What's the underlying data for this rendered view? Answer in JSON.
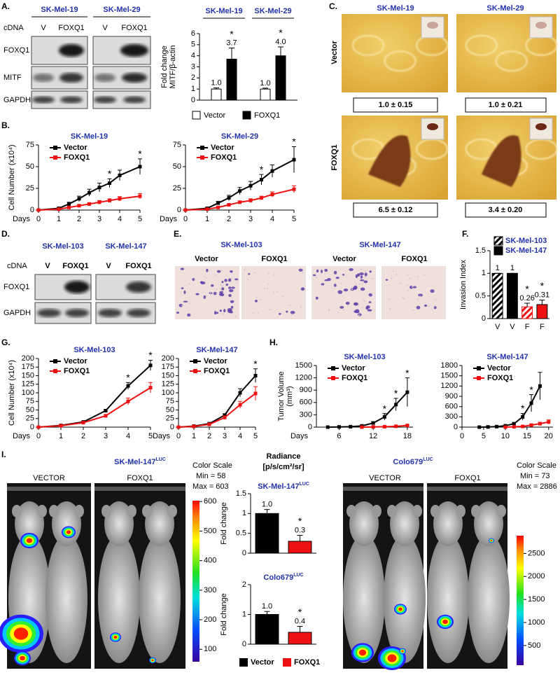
{
  "panels": {
    "A": {
      "label": "A.",
      "cell_lines": [
        "SK-Mel-19",
        "SK-Mel-29"
      ],
      "row_label": "cDNA",
      "lanes": [
        "V",
        "FOXQ1"
      ],
      "proteins": [
        "FOXQ1",
        "MITF",
        "GAPDH"
      ]
    },
    "B": {
      "label": "B."
    },
    "C": {
      "label": "C.",
      "cell_lines": [
        "SK-Mel-19",
        "SK-Mel-29"
      ],
      "rows": [
        "Vector",
        "FOXQ1"
      ],
      "quant": [
        [
          "1.0 ± 0.15",
          "1.0 ± 0.21"
        ],
        [
          "6.5 ± 0.12",
          "3.4 ± 0.20"
        ]
      ]
    },
    "D": {
      "label": "D.",
      "cell_lines": [
        "SK-Mel-103",
        "SK-Mel-147"
      ],
      "row_label": "cDNA",
      "lanes": [
        "V",
        "FOXQ1"
      ],
      "proteins": [
        "FOXQ1",
        "GAPDH"
      ]
    },
    "E": {
      "label": "E.",
      "cell_lines": [
        "SK-Mel-103",
        "SK-Mel-147"
      ],
      "conditions": [
        "Vector",
        "FOXQ1"
      ]
    },
    "F": {
      "label": "F."
    },
    "G": {
      "label": "G."
    },
    "H": {
      "label": "H."
    },
    "I": {
      "label": "I.",
      "radiance": "Radiance",
      "radiance_unit": "[p/s/cm²/sr]",
      "legend": [
        {
          "name": "Vector",
          "color": "#000000"
        },
        {
          "name": "FOXQ1",
          "color": "#ee1111"
        }
      ],
      "imaging": [
        {
          "title": "SK-Mel-147",
          "title_sup": "LUC",
          "groups": [
            "VECTOR",
            "FOXQ1"
          ],
          "scale_title": "Color Scale",
          "min_label": "Min =",
          "min": 58,
          "max_label": "Max =",
          "max": 603,
          "scale_ticks": [
            100,
            200,
            300,
            400,
            500,
            600
          ]
        },
        {
          "title": "Colo679",
          "title_sup": "LUC",
          "groups": [
            "VECTOR",
            "FOXQ1"
          ],
          "scale_title": "Color Scale",
          "min_label": "Min =",
          "min": 73,
          "max_label": "Max =",
          "max": 2886,
          "scale_ticks": [
            500,
            1000,
            1500,
            2000,
            2500
          ]
        }
      ]
    }
  },
  "chart_data": [
    {
      "type": "bar",
      "categories": [
        "SK-Mel-19",
        "SK-Mel-29"
      ],
      "ylabel": [
        "Fold change",
        "MITF/β-actin"
      ],
      "ylim": [
        0,
        6
      ],
      "yticks": [
        0,
        1,
        2,
        3,
        4,
        5,
        6
      ],
      "series": [
        {
          "name": "Vector",
          "color": "#ffffff",
          "values": [
            1.0,
            1.0
          ],
          "value_labels": [
            "1.0",
            "1.0"
          ],
          "errors": [
            0.1,
            0.08
          ]
        },
        {
          "name": "FOXQ1",
          "color": "#000000",
          "values": [
            3.7,
            4.0
          ],
          "value_labels": [
            "3.7",
            "4.0"
          ],
          "errors": [
            1.0,
            0.8
          ],
          "stars": [
            "*",
            "*"
          ]
        }
      ]
    },
    {
      "type": "line",
      "title": "SK-Mel-19",
      "xlabel": "Days",
      "ylabel": [
        "Cell Number (x10⁴)"
      ],
      "x": [
        0,
        1,
        1.5,
        2,
        2.5,
        3,
        3.5,
        4,
        5
      ],
      "xlim": [
        0,
        5
      ],
      "xticks": [
        0,
        1,
        2,
        3,
        4,
        5
      ],
      "ylim": [
        0,
        75
      ],
      "yticks": [
        0,
        25,
        50,
        75
      ],
      "series": [
        {
          "name": "Vector",
          "color": "#000000",
          "values": [
            0,
            2,
            7,
            13,
            20,
            26,
            31,
            40,
            50
          ],
          "errors": [
            0,
            1,
            2,
            3,
            4,
            5,
            5,
            6,
            9
          ],
          "stars": [
            null,
            null,
            null,
            null,
            null,
            null,
            "*",
            null,
            "*"
          ]
        },
        {
          "name": "FOXQ1",
          "color": "#ee1111",
          "values": [
            0,
            1,
            3,
            5,
            7,
            9,
            11,
            13,
            16
          ],
          "errors": [
            0,
            0.5,
            1,
            1,
            1.5,
            2,
            2,
            2.5,
            3
          ]
        }
      ]
    },
    {
      "type": "line",
      "title": "SK-Mel-29",
      "xlabel": "Days",
      "x": [
        0,
        1,
        1.5,
        2,
        2.5,
        3,
        3.5,
        4,
        5
      ],
      "xlim": [
        0,
        5
      ],
      "xticks": [
        0,
        1,
        2,
        3,
        4,
        5
      ],
      "ylim": [
        0,
        75
      ],
      "yticks": [
        0,
        25,
        50,
        75
      ],
      "series": [
        {
          "name": "Vector",
          "color": "#000000",
          "values": [
            0,
            2,
            8,
            14,
            22,
            28,
            35,
            45,
            58
          ],
          "errors": [
            0,
            1,
            2,
            3,
            4,
            5,
            6,
            7,
            15
          ],
          "stars": [
            null,
            null,
            null,
            null,
            null,
            null,
            "*",
            null,
            "*"
          ]
        },
        {
          "name": "FOXQ1",
          "color": "#ee1111",
          "values": [
            0,
            1,
            3,
            6,
            9,
            11,
            14,
            18,
            24
          ],
          "errors": [
            0,
            0.5,
            1,
            1,
            1.5,
            2,
            2,
            3,
            4
          ]
        }
      ]
    },
    {
      "type": "bar",
      "categories": [
        "V",
        "V",
        "F",
        "F"
      ],
      "ylabel": [
        "Invasion Index"
      ],
      "ylim": [
        0,
        1.5
      ],
      "yticks": [
        0,
        0.5,
        1,
        1.5
      ],
      "values": [
        1,
        1,
        0.26,
        0.31
      ],
      "errors": [
        0,
        0,
        0.08,
        0.1
      ],
      "stars": [
        null,
        null,
        "*",
        "*"
      ],
      "colors": [
        "#000000",
        "#000000",
        "#ee1111",
        "#ee1111"
      ],
      "hatched": [
        true,
        false,
        true,
        false
      ],
      "legend": [
        {
          "name": "SK-Mel-103",
          "color": "#000000",
          "hatched": true
        },
        {
          "name": "SK-Mel-147",
          "color": "#000000",
          "hatched": false
        }
      ]
    },
    {
      "type": "line",
      "title": "SK-Mel-103",
      "xlabel": "Days",
      "ylabel": [
        "Cell Number (x10⁴)"
      ],
      "x": [
        0,
        1,
        2,
        3,
        4,
        5
      ],
      "xlim": [
        0,
        5
      ],
      "xticks": [
        0,
        1,
        2,
        3,
        4,
        5
      ],
      "ylim": [
        0,
        200
      ],
      "yticks": [
        0,
        25,
        50,
        75,
        100,
        125,
        150,
        175,
        200
      ],
      "series": [
        {
          "name": "Vector",
          "color": "#000000",
          "values": [
            0,
            5,
            15,
            48,
            120,
            180
          ],
          "errors": [
            0,
            1,
            2,
            4,
            10,
            15
          ],
          "stars": [
            null,
            null,
            null,
            null,
            "*",
            "*"
          ]
        },
        {
          "name": "FOXQ1",
          "color": "#ee1111",
          "values": [
            0,
            4,
            13,
            33,
            75,
            115
          ],
          "errors": [
            0,
            1,
            2,
            3,
            10,
            15
          ]
        }
      ]
    },
    {
      "type": "line",
      "title": "SK-Mel-147",
      "xlabel": "Days",
      "x": [
        0,
        1,
        2,
        3,
        4,
        5
      ],
      "xlim": [
        0,
        5
      ],
      "xticks": [
        0,
        1,
        2,
        3,
        4,
        5
      ],
      "ylim": [
        0,
        200
      ],
      "yticks": [
        0,
        25,
        50,
        75,
        100,
        125,
        150,
        175,
        200
      ],
      "series": [
        {
          "name": "Vector",
          "color": "#000000",
          "values": [
            0,
            3,
            10,
            35,
            100,
            150
          ],
          "errors": [
            0,
            1,
            2,
            4,
            12,
            20
          ],
          "stars": [
            null,
            null,
            null,
            null,
            null,
            "*"
          ]
        },
        {
          "name": "FOXQ1",
          "color": "#ee1111",
          "values": [
            0,
            2,
            8,
            28,
            65,
            98
          ],
          "errors": [
            0,
            1,
            2,
            4,
            10,
            20
          ]
        }
      ]
    },
    {
      "type": "line",
      "title": "SK-Mel-103",
      "xlabel": "Days",
      "ylabel": [
        "Tumor Volume",
        "(mm³)"
      ],
      "x": [
        4,
        6,
        8,
        10,
        12,
        14,
        16,
        18
      ],
      "xlim": [
        2,
        19
      ],
      "xticks": [
        6,
        12,
        18
      ],
      "ylim": [
        0,
        1500
      ],
      "yticks": [
        0,
        300,
        600,
        900,
        1200,
        1500
      ],
      "series": [
        {
          "name": "Vector",
          "color": "#000000",
          "values": [
            0,
            5,
            10,
            30,
            100,
            250,
            550,
            850
          ],
          "errors": [
            0,
            2,
            5,
            10,
            30,
            80,
            150,
            350
          ],
          "stars": [
            null,
            null,
            null,
            null,
            null,
            "*",
            "*",
            "*"
          ]
        },
        {
          "name": "FOXQ1",
          "color": "#ee1111",
          "values": [
            null,
            null,
            null,
            0,
            5,
            10,
            20,
            40
          ],
          "errors": [
            null,
            null,
            null,
            1,
            2,
            3,
            5,
            10
          ]
        }
      ]
    },
    {
      "type": "line",
      "title": "SK-Mel-147",
      "x": [
        4,
        6,
        8,
        10,
        12,
        14,
        16,
        18,
        20
      ],
      "xlim": [
        0,
        21
      ],
      "xticks": [
        0,
        5,
        10,
        15,
        20
      ],
      "ylim": [
        0,
        1800
      ],
      "yticks": [
        0,
        300,
        600,
        900,
        1200,
        1500,
        1800
      ],
      "series": [
        {
          "name": "Vector",
          "color": "#000000",
          "values": [
            0,
            5,
            15,
            40,
            100,
            300,
            700,
            1200,
            null
          ],
          "errors": [
            0,
            3,
            5,
            10,
            30,
            100,
            250,
            400,
            null
          ],
          "stars": [
            null,
            null,
            null,
            null,
            null,
            "*",
            "*",
            null,
            null
          ]
        },
        {
          "name": "FOXQ1",
          "color": "#ee1111",
          "values": [
            null,
            null,
            null,
            0,
            10,
            20,
            60,
            100,
            150
          ],
          "errors": [
            null,
            null,
            null,
            2,
            5,
            8,
            20,
            40,
            60
          ]
        }
      ]
    },
    {
      "type": "bar",
      "title": "SK-Mel-147",
      "title_sup": "LUC",
      "ylabel": [
        "Fold change"
      ],
      "ylim": [
        0,
        1.5
      ],
      "yticks": [
        0,
        0.5,
        1,
        1.5
      ],
      "values": [
        1.0,
        0.3
      ],
      "value_labels": [
        "1.0",
        "0.3"
      ],
      "errors": [
        0.1,
        0.15
      ],
      "stars": [
        null,
        "*"
      ],
      "colors": [
        "#000000",
        "#ee1111"
      ]
    },
    {
      "type": "bar",
      "title": "Colo679",
      "title_sup": "LUC",
      "ylabel": [
        "Fold change"
      ],
      "ylim": [
        0,
        2
      ],
      "yticks": [
        0,
        1,
        2
      ],
      "values": [
        1.0,
        0.4
      ],
      "value_labels": [
        "1.0",
        "0.4"
      ],
      "errors": [
        0.1,
        0.2
      ],
      "stars": [
        null,
        "*"
      ],
      "colors": [
        "#000000",
        "#ee1111"
      ]
    }
  ]
}
